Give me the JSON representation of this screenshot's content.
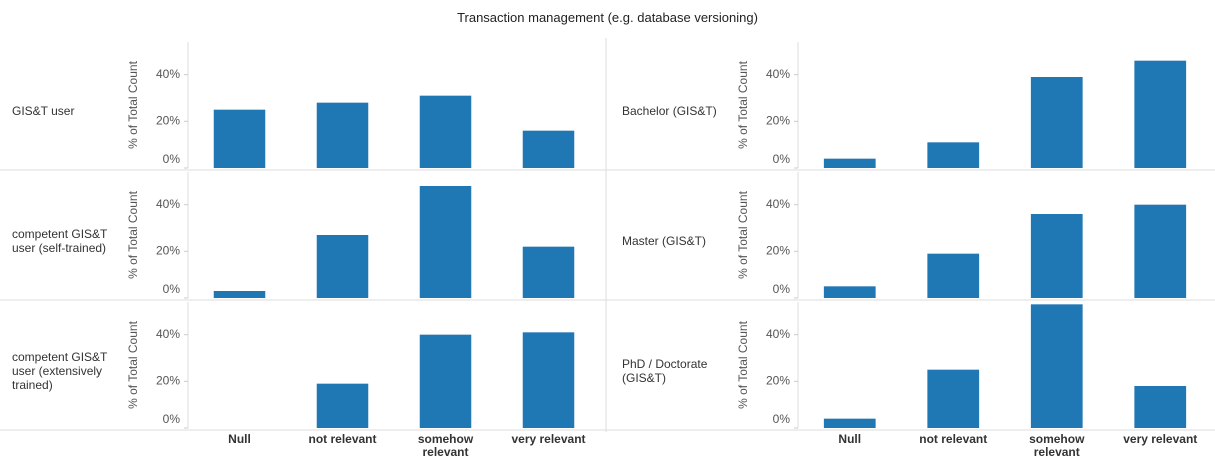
{
  "chart_data": {
    "type": "bar",
    "title": "Transaction management (e.g. database versioning)",
    "ylabel": "% of Total Count",
    "categories": [
      "Null",
      "not relevant",
      "somehow relevant",
      "very relevant"
    ],
    "color": "#1f77b4",
    "ylim": [
      0,
      54
    ],
    "yticks": [
      {
        "value": 0,
        "label": "0%"
      },
      {
        "value": 20,
        "label": "20%"
      },
      {
        "value": 40,
        "label": "40%"
      }
    ],
    "facets": [
      {
        "label": "GIS&T user",
        "values": [
          25,
          28,
          31,
          16
        ]
      },
      {
        "label": "competent GIS&T user (self-trained)",
        "values": [
          3,
          27,
          48,
          22
        ]
      },
      {
        "label": "competent GIS&T user (extensively trained)",
        "values": [
          0,
          19,
          40,
          41
        ]
      },
      {
        "label": "Bachelor (GIS&T)",
        "values": [
          4,
          11,
          39,
          46
        ]
      },
      {
        "label": "Master (GIS&T)",
        "values": [
          5,
          19,
          36,
          40
        ]
      },
      {
        "label": "PhD / Doctorate (GIS&T)",
        "values": [
          4,
          25,
          53,
          18
        ]
      }
    ]
  }
}
